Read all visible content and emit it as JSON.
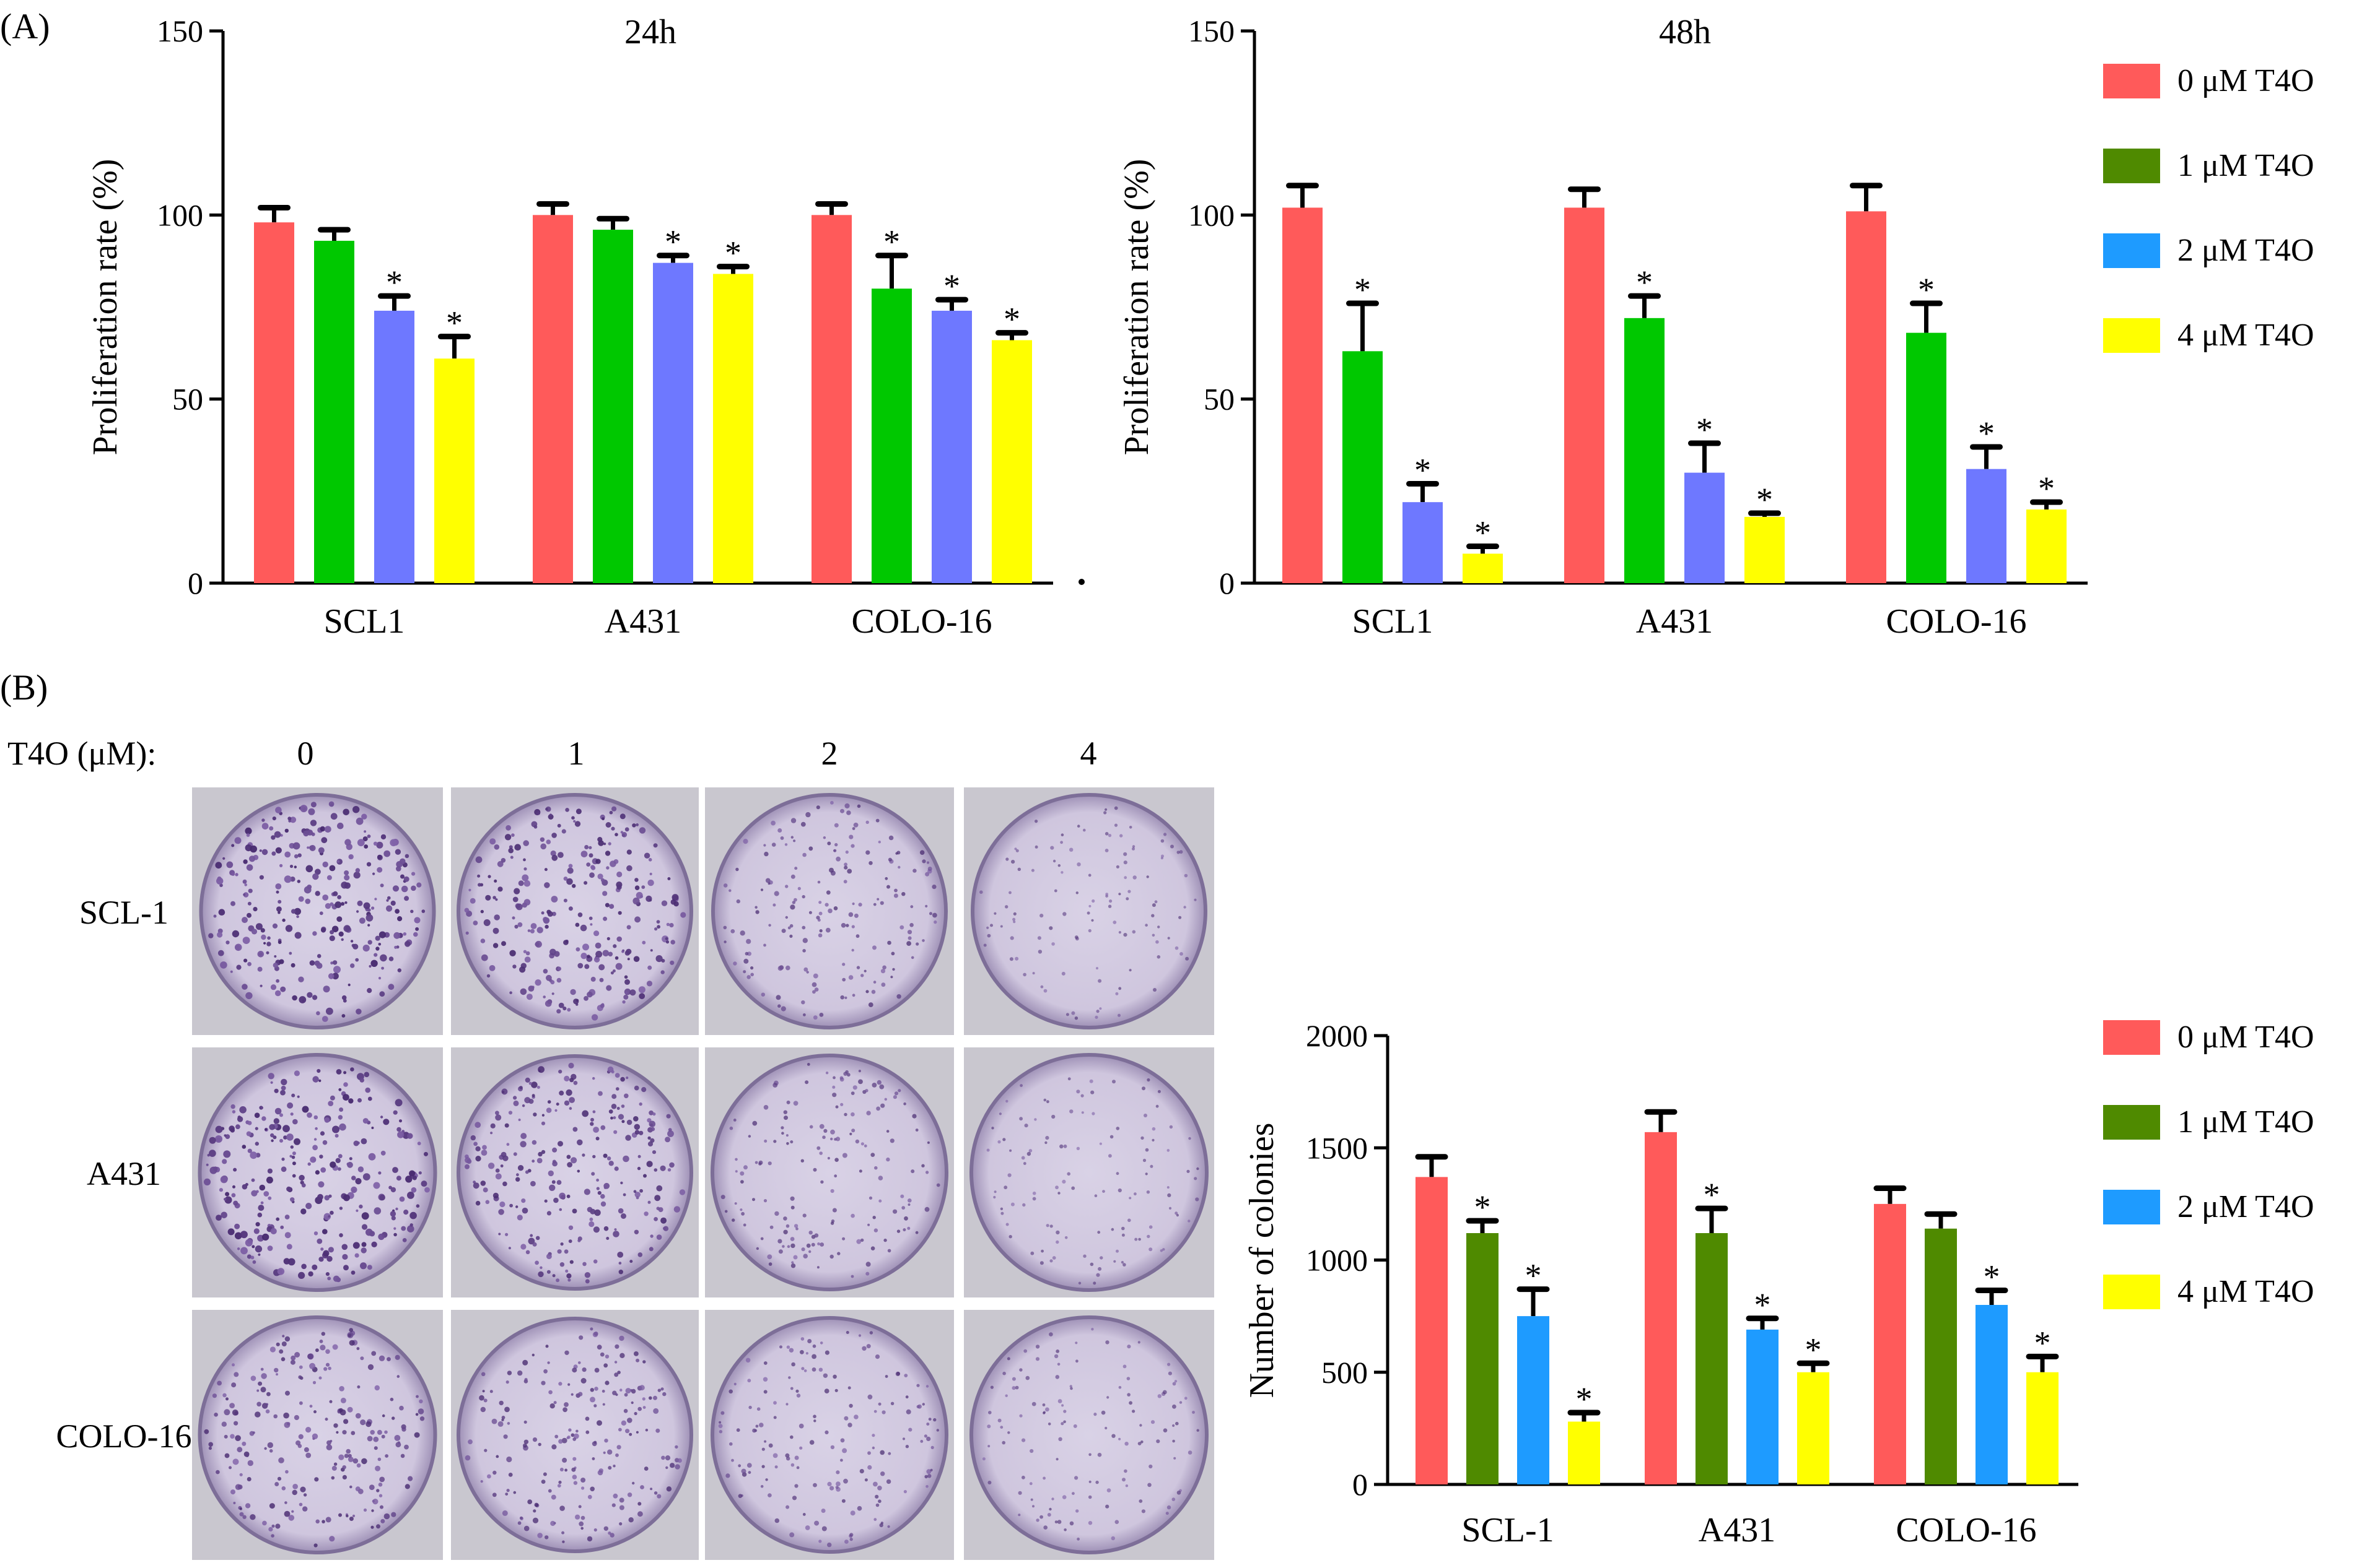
{
  "panel_labels": {
    "a": "(A)",
    "b": "(B)"
  },
  "chart_data": [
    {
      "id": "a24",
      "type": "bar",
      "title": "24h",
      "ylabel": "Proliferation rate (%)",
      "xlabel": "",
      "ylim": [
        0,
        150
      ],
      "yticks": [
        0,
        50,
        100,
        150
      ],
      "categories": [
        "SCL1",
        "A431",
        "COLO-16"
      ],
      "series": [
        {
          "name": "0 μM T4O",
          "color": "#ff5a5a",
          "values": [
            98,
            100,
            100
          ],
          "errors": [
            4,
            3,
            3
          ],
          "sig": [
            false,
            false,
            false
          ]
        },
        {
          "name": "1 μM T4O",
          "color": "#00c800",
          "values": [
            93,
            96,
            80
          ],
          "errors": [
            3,
            3,
            9
          ],
          "sig": [
            false,
            false,
            true
          ]
        },
        {
          "name": "2 μM T4O",
          "color": "#6e78ff",
          "values": [
            74,
            87,
            74
          ],
          "errors": [
            4,
            2,
            3
          ],
          "sig": [
            true,
            true,
            true
          ]
        },
        {
          "name": "4 μM T4O",
          "color": "#ffff00",
          "values": [
            61,
            84,
            66
          ],
          "errors": [
            6,
            2,
            2
          ],
          "sig": [
            true,
            true,
            true
          ]
        }
      ]
    },
    {
      "id": "a48",
      "type": "bar",
      "title": "48h",
      "ylabel": "Proliferation rate (%)",
      "xlabel": "",
      "ylim": [
        0,
        150
      ],
      "yticks": [
        0,
        50,
        100,
        150
      ],
      "categories": [
        "SCL1",
        "A431",
        "COLO-16"
      ],
      "series": [
        {
          "name": "0 μM T4O",
          "color": "#ff5a5a",
          "values": [
            102,
            102,
            101
          ],
          "errors": [
            6,
            5,
            7
          ],
          "sig": [
            false,
            false,
            false
          ]
        },
        {
          "name": "1 μM T4O",
          "color": "#00c800",
          "values": [
            63,
            72,
            68
          ],
          "errors": [
            13,
            6,
            8
          ],
          "sig": [
            true,
            true,
            true
          ]
        },
        {
          "name": "2 μM T4O",
          "color": "#6e78ff",
          "values": [
            22,
            30,
            31
          ],
          "errors": [
            5,
            8,
            6
          ],
          "sig": [
            true,
            true,
            true
          ]
        },
        {
          "name": "4 μM T4O",
          "color": "#ffff00",
          "values": [
            8,
            18,
            20
          ],
          "errors": [
            2,
            1,
            2
          ],
          "sig": [
            true,
            true,
            true
          ]
        }
      ]
    },
    {
      "id": "b",
      "type": "bar",
      "title": "",
      "ylabel": "Number of colonies",
      "xlabel": "",
      "ylim": [
        0,
        2000
      ],
      "yticks": [
        0,
        500,
        1000,
        1500,
        2000
      ],
      "categories": [
        "SCL-1",
        "A431",
        "COLO-16"
      ],
      "series": [
        {
          "name": "0 μM T4O",
          "color": "#ff5a5a",
          "values": [
            1370,
            1570,
            1250
          ],
          "errors": [
            90,
            90,
            70
          ],
          "sig": [
            false,
            false,
            false
          ]
        },
        {
          "name": "1 μM T4O",
          "color": "#4f8a00",
          "values": [
            1120,
            1120,
            1140
          ],
          "errors": [
            55,
            110,
            65
          ],
          "sig": [
            true,
            true,
            false
          ]
        },
        {
          "name": "2 μM T4O",
          "color": "#1e9bff",
          "values": [
            750,
            690,
            800
          ],
          "errors": [
            120,
            50,
            65
          ],
          "sig": [
            true,
            true,
            true
          ]
        },
        {
          "name": "4 μM T4O",
          "color": "#ffff00",
          "values": [
            280,
            500,
            500
          ],
          "errors": [
            40,
            40,
            70
          ],
          "sig": [
            true,
            true,
            true
          ]
        }
      ]
    }
  ],
  "legends": {
    "a": [
      {
        "label": "0 μM T4O",
        "color": "#ff5a5a"
      },
      {
        "label": "1 μM T4O",
        "color": "#4f8a00"
      },
      {
        "label": "2 μM T4O",
        "color": "#1e9bff"
      },
      {
        "label": "4 μM T4O",
        "color": "#ffff00"
      }
    ],
    "b": [
      {
        "label": "0 μM T4O",
        "color": "#ff5a5a"
      },
      {
        "label": "1 μM T4O",
        "color": "#4f8a00"
      },
      {
        "label": "2 μM T4O",
        "color": "#1e9bff"
      },
      {
        "label": "4 μM T4O",
        "color": "#ffff00"
      }
    ]
  },
  "colony_grid": {
    "header_label": "T4O (μM):",
    "concentrations": [
      "0",
      "1",
      "2",
      "4"
    ],
    "cell_lines": [
      "SCL-1",
      "A431",
      "COLO-16"
    ],
    "density": [
      [
        1.0,
        0.9,
        0.55,
        0.3
      ],
      [
        1.0,
        0.85,
        0.5,
        0.3
      ],
      [
        0.75,
        0.65,
        0.5,
        0.35
      ]
    ]
  },
  "significance_marker": "*"
}
